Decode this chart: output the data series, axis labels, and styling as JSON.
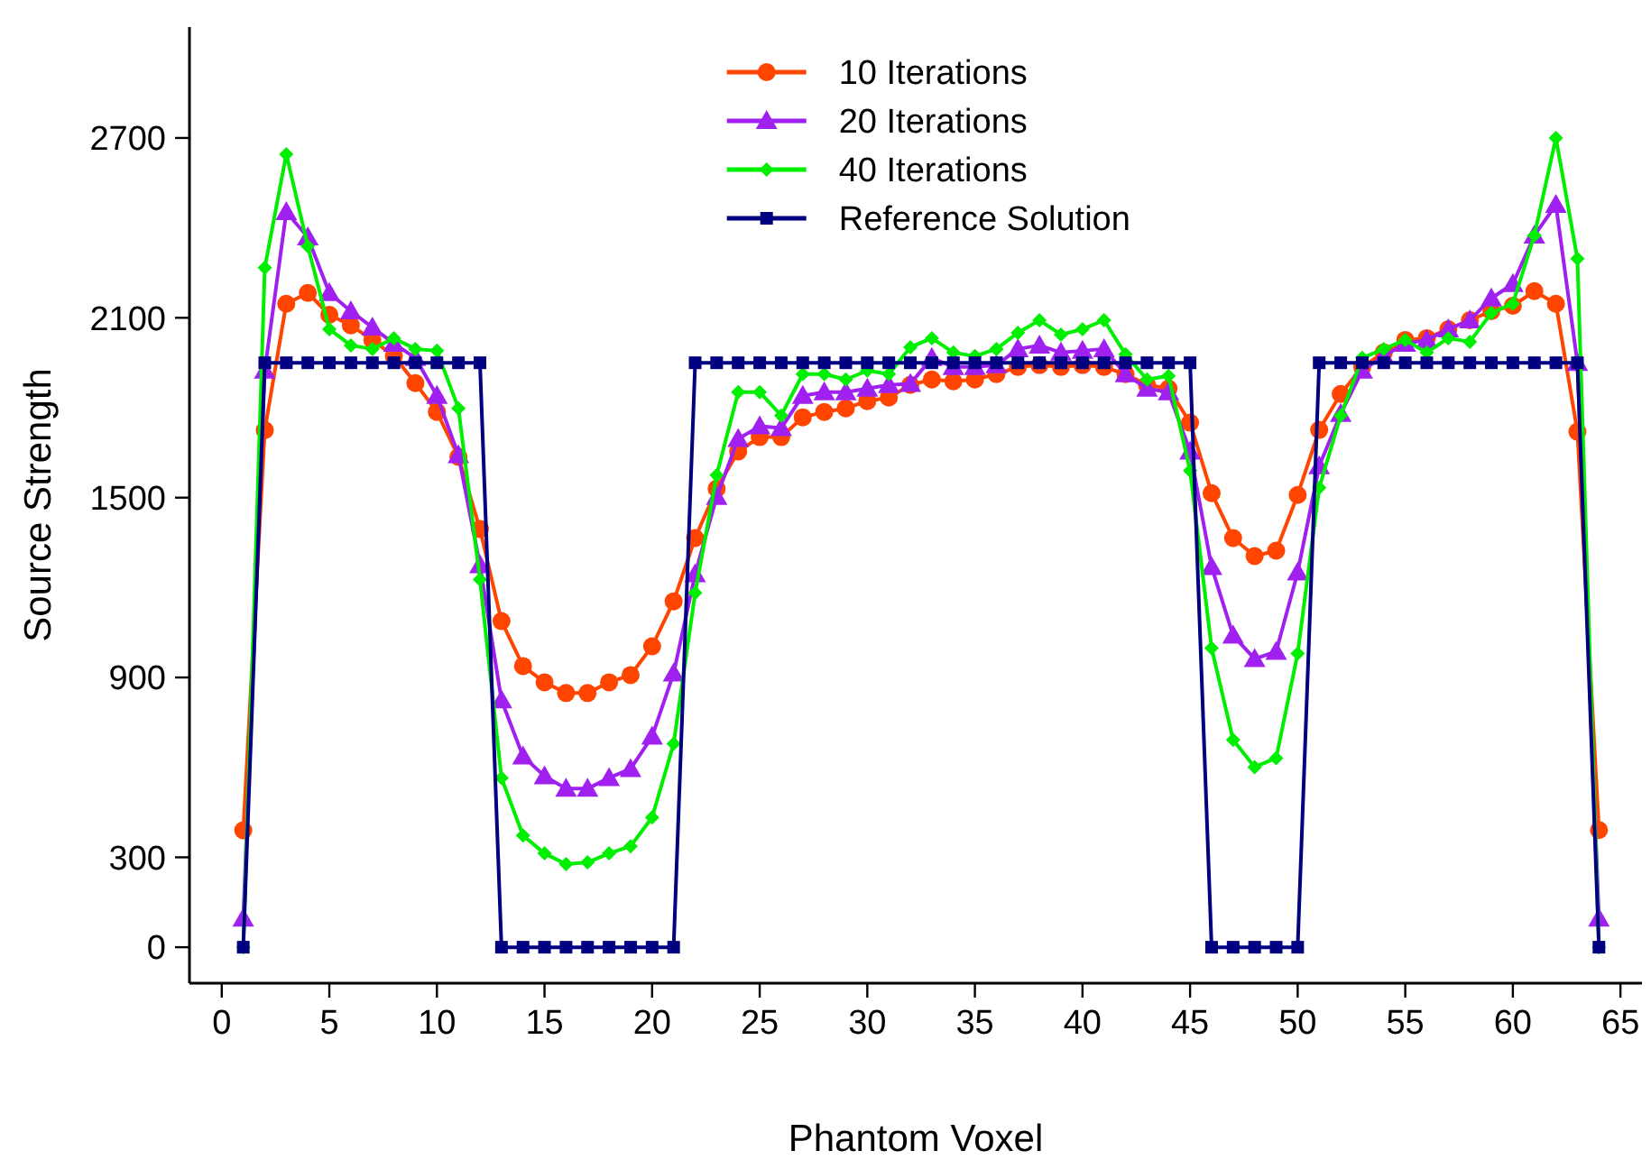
{
  "chart_data": {
    "type": "line",
    "xlabel": "Phantom Voxel",
    "ylabel": "Source Strength",
    "x": [
      1,
      2,
      3,
      4,
      5,
      6,
      7,
      8,
      9,
      10,
      11,
      12,
      13,
      14,
      15,
      16,
      17,
      18,
      19,
      20,
      21,
      22,
      23,
      24,
      25,
      26,
      27,
      28,
      29,
      30,
      31,
      32,
      33,
      34,
      35,
      36,
      37,
      38,
      39,
      40,
      41,
      42,
      43,
      44,
      45,
      46,
      47,
      48,
      49,
      50,
      51,
      52,
      53,
      54,
      55,
      56,
      57,
      58,
      59,
      60,
      61,
      62,
      63,
      64
    ],
    "xlim": [
      -1.5,
      66
    ],
    "xticks": [
      0,
      5,
      10,
      15,
      20,
      25,
      30,
      35,
      40,
      45,
      50,
      55,
      60,
      65
    ],
    "ylim": [
      -120,
      3070
    ],
    "yticks": [
      0,
      300,
      900,
      1500,
      2100,
      2700
    ],
    "grid": false,
    "legend": "top",
    "line_style": "solid",
    "series": [
      {
        "name": "10 Iterations",
        "color": "#ff4500",
        "marker": "circle",
        "values": [
          390,
          1725,
          2147,
          2183,
          2110,
          2075,
          2026,
          1972,
          1882,
          1786,
          1636,
          1395,
          1088,
          938,
          884,
          848,
          848,
          884,
          908,
          1004,
          1154,
          1365,
          1530,
          1654,
          1702,
          1702,
          1768,
          1786,
          1798,
          1822,
          1834,
          1876,
          1894,
          1888,
          1894,
          1912,
          1936,
          1942,
          1936,
          1942,
          1936,
          1912,
          1876,
          1864,
          1750,
          1515,
          1365,
          1305,
          1323,
          1509,
          1726,
          1846,
          1936,
          1984,
          2026,
          2032,
          2062,
          2092,
          2122,
          2140,
          2189,
          2147,
          1720,
          391
        ]
      },
      {
        "name": "20 Iterations",
        "color": "#a020f0",
        "marker": "triangle",
        "values": [
          96,
          1924,
          2453,
          2369,
          2183,
          2122,
          2068,
          2014,
          1966,
          1840,
          1642,
          1275,
          824,
          637,
          571,
          529,
          529,
          565,
          595,
          703,
          914,
          1245,
          1503,
          1696,
          1738,
          1732,
          1840,
          1852,
          1852,
          1864,
          1876,
          1880,
          1966,
          1936,
          1936,
          1942,
          1996,
          2008,
          1984,
          1990,
          1996,
          1912,
          1864,
          1852,
          1654,
          1269,
          1040,
          962,
          986,
          1251,
          1605,
          1780,
          1924,
          1972,
          2014,
          2026,
          2062,
          2092,
          2165,
          2213,
          2375,
          2477,
          1950,
          96
        ]
      },
      {
        "name": "40 Iterations",
        "color": "#00ee00",
        "marker": "diamond",
        "values": [
          0,
          2267,
          2646,
          2339,
          2062,
          2008,
          1996,
          2032,
          1996,
          1990,
          1798,
          1227,
          565,
          373,
          313,
          277,
          283,
          313,
          337,
          433,
          679,
          1182,
          1575,
          1852,
          1852,
          1774,
          1912,
          1912,
          1894,
          1924,
          1912,
          2002,
          2032,
          1984,
          1972,
          1996,
          2050,
          2092,
          2044,
          2062,
          2092,
          1978,
          1894,
          1906,
          1590,
          998,
          692,
          601,
          631,
          980,
          1533,
          1774,
          1966,
          1996,
          2026,
          1984,
          2032,
          2020,
          2116,
          2147,
          2375,
          2700,
          2297,
          0
        ]
      },
      {
        "name": "Reference Solution",
        "color": "#000080",
        "marker": "square",
        "values": [
          0,
          1950,
          1950,
          1950,
          1950,
          1950,
          1950,
          1950,
          1950,
          1950,
          1950,
          1950,
          0,
          0,
          0,
          0,
          0,
          0,
          0,
          0,
          0,
          1950,
          1950,
          1950,
          1950,
          1950,
          1950,
          1950,
          1950,
          1950,
          1950,
          1950,
          1950,
          1950,
          1950,
          1950,
          1950,
          1950,
          1950,
          1950,
          1950,
          1950,
          1950,
          1950,
          1950,
          0,
          0,
          0,
          0,
          0,
          1950,
          1950,
          1950,
          1950,
          1950,
          1950,
          1950,
          1950,
          1950,
          1950,
          1950,
          1950,
          1950,
          0
        ]
      }
    ]
  }
}
